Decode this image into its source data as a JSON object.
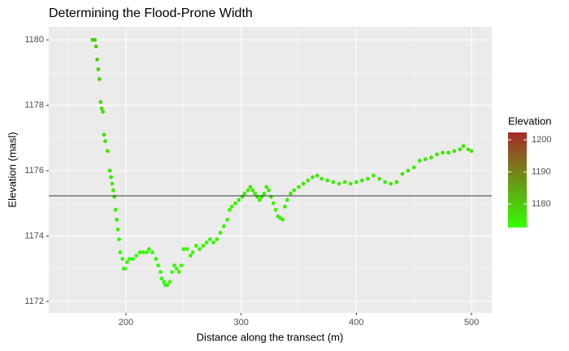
{
  "chart_data": {
    "type": "scatter",
    "title": "Determining the Flood-Prone Width",
    "x_label": "Distance along the transect (m)",
    "y_label": "Elevation (masl)",
    "xlim": [
      133,
      517.6
    ],
    "ylim": [
      1171.65,
      1180.4
    ],
    "xticks": [
      200,
      300,
      400,
      500
    ],
    "yticks": [
      1172,
      1174,
      1176,
      1178,
      1180
    ],
    "xminor": [
      150,
      250,
      350,
      450
    ],
    "yminor": [
      1173,
      1175,
      1177,
      1179
    ],
    "grid": true,
    "hline": 1175.23,
    "x": [
      171,
      173,
      174,
      175,
      176,
      177,
      178,
      179,
      180,
      181,
      182,
      184,
      186,
      187,
      188,
      189,
      190,
      191,
      192,
      193,
      194,
      195,
      197,
      198,
      199,
      201,
      203,
      206,
      209,
      212,
      215,
      218,
      220,
      223,
      226,
      228,
      230,
      231,
      233,
      234,
      236,
      238,
      240,
      242,
      244,
      246,
      248,
      250,
      253,
      256,
      258,
      261,
      264,
      267,
      270,
      273,
      276,
      279,
      282,
      285,
      288,
      290,
      292,
      295,
      298,
      301,
      303,
      306,
      308,
      310,
      312,
      314,
      316,
      318,
      320,
      322,
      324,
      326,
      328,
      330,
      332,
      334,
      336,
      338,
      340,
      343,
      346,
      350,
      354,
      358,
      362,
      366,
      370,
      375,
      380,
      385,
      390,
      395,
      400,
      405,
      410,
      415,
      420,
      425,
      430,
      435,
      440,
      445,
      450,
      455,
      460,
      465,
      470,
      475,
      480,
      485,
      490,
      493,
      497,
      500
    ],
    "values": [
      1180,
      1180,
      1179.8,
      1179.4,
      1179.1,
      1178.8,
      1178.1,
      1177.9,
      1177.8,
      1177.1,
      1176.9,
      1176.6,
      1176,
      1175.8,
      1175.6,
      1175.4,
      1175.2,
      1174.8,
      1174.5,
      1174.2,
      1173.9,
      1173.5,
      1173.3,
      1173,
      1173,
      1173.2,
      1173.3,
      1173.3,
      1173.4,
      1173.5,
      1173.5,
      1173.5,
      1173.6,
      1173.5,
      1173.3,
      1173.1,
      1172.9,
      1172.7,
      1172.6,
      1172.5,
      1172.5,
      1172.6,
      1172.9,
      1173.1,
      1173,
      1172.9,
      1173.1,
      1173.6,
      1173.6,
      1173.4,
      1173.5,
      1173.7,
      1173.6,
      1173.7,
      1173.8,
      1173.9,
      1173.8,
      1173.9,
      1174.1,
      1174.3,
      1174.5,
      1174.8,
      1174.9,
      1175,
      1175.1,
      1175.2,
      1175.3,
      1175.4,
      1175.5,
      1175.4,
      1175.3,
      1175.2,
      1175.1,
      1175.2,
      1175.3,
      1175.5,
      1175.4,
      1175.2,
      1175,
      1174.8,
      1174.6,
      1174.55,
      1174.5,
      1174.9,
      1175.1,
      1175.3,
      1175.4,
      1175.5,
      1175.6,
      1175.7,
      1175.8,
      1175.85,
      1175.75,
      1175.7,
      1175.65,
      1175.6,
      1175.65,
      1175.6,
      1175.65,
      1175.7,
      1175.75,
      1175.85,
      1175.75,
      1175.65,
      1175.6,
      1175.65,
      1175.9,
      1176,
      1176.1,
      1176.3,
      1176.35,
      1176.4,
      1176.5,
      1176.55,
      1176.55,
      1176.6,
      1176.65,
      1176.75,
      1176.65,
      1176.6
    ],
    "color_scale": {
      "name": "Elevation",
      "low": "#33ff00",
      "high": "#a52a2a",
      "lim": [
        1172.7,
        1202.3
      ],
      "ticks": [
        1180,
        1190,
        1200
      ]
    }
  }
}
